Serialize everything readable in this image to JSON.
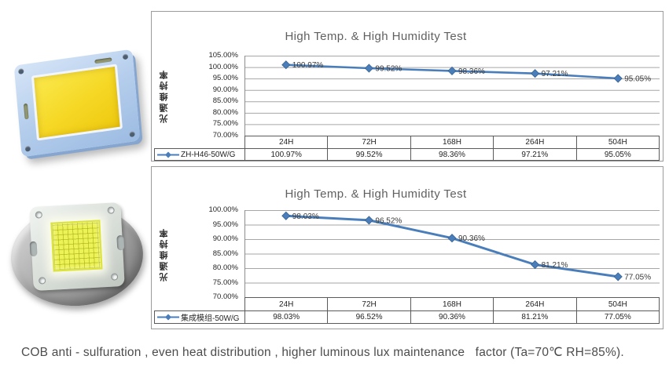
{
  "caption": "COB anti - sulfuration , even heat distribution , higher luminous lux maintenance   factor (Ta=70℃ RH=85%).",
  "colors": {
    "series_blue": "#4a7ebb",
    "marker_stroke": "#38628f",
    "gridline": "#a6a6a6",
    "axis_line": "#8c8c8c",
    "panel_border": "#9b9b9b",
    "module_frame_blue": "#b4cdec",
    "phosphor_yellow": "#f5d724",
    "cob_grid_yellow": "#edf257"
  },
  "products": [
    {
      "name": "square COB LED module photo"
    },
    {
      "name": "round-base COB LED module photo"
    }
  ],
  "chart_data": [
    {
      "type": "line",
      "title": "High Temp. & High Humidity Test",
      "xlabel": "",
      "ylabel": "光通维持率",
      "categories": [
        "24H",
        "72H",
        "168H",
        "264H",
        "504H"
      ],
      "series": [
        {
          "name": "ZH-H46-50W/G",
          "values": [
            100.97,
            99.52,
            98.36,
            97.21,
            95.05
          ],
          "values_fmt": [
            "100.97%",
            "99.52%",
            "98.36%",
            "97.21%",
            "95.05%"
          ]
        }
      ],
      "ylim": [
        70,
        105
      ],
      "ytick_labels": [
        "105.00%",
        "100.00%",
        "95.00%",
        "90.00%",
        "85.00%",
        "80.00%",
        "75.00%",
        "70.00%"
      ],
      "grid": true,
      "marker": "diamond",
      "legend_position": "bottom-table"
    },
    {
      "type": "line",
      "title": "High Temp. & High Humidity Test",
      "xlabel": "",
      "ylabel": "光通维持率",
      "categories": [
        "24H",
        "72H",
        "168H",
        "264H",
        "504H"
      ],
      "series": [
        {
          "name": "集成模组-50W/G",
          "values": [
            98.03,
            96.52,
            90.36,
            81.21,
            77.05
          ],
          "values_fmt": [
            "98.03%",
            "96.52%",
            "90.36%",
            "81.21%",
            "77.05%"
          ]
        }
      ],
      "ylim": [
        70,
        100
      ],
      "ytick_labels": [
        "100.00%",
        "95.00%",
        "90.00%",
        "85.00%",
        "80.00%",
        "75.00%",
        "70.00%"
      ],
      "grid": true,
      "marker": "diamond",
      "legend_position": "bottom-table"
    }
  ]
}
